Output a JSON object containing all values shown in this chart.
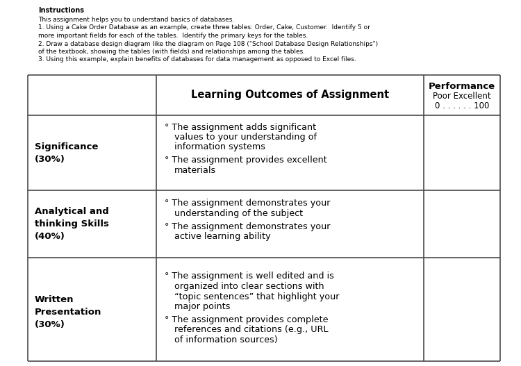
{
  "bg_color": "#ffffff",
  "title_text": "Instructions",
  "instructions_lines": [
    "This assignment helps you to understand basics of databases.",
    "1. Using a Cake Order Database as an example, create three tables: Order, Cake, Customer.  Identify 5 or",
    "more important fields for each of the tables.  Identify the primary keys for the tables.",
    "2. Draw a database design diagram like the diagram on Page 108 (\"School Database Design Relationships\")",
    "of the textbook, showing the tables (with fields) and relationships among the tables.",
    "3. Using this example, explain benefits of databases for data management as opposed to Excel files."
  ],
  "col2_header": "Learning Outcomes of Assignment",
  "col3_header_lines": [
    "Performance",
    "Poor Excellent",
    "0 . . . . . . 100"
  ],
  "rows": [
    {
      "col1": "Significance\n(30%)",
      "col2_bullets": [
        [
          "° The assignment adds significant",
          "values to your understanding of",
          "information systems"
        ],
        [
          "° The assignment provides excellent",
          "materials"
        ]
      ]
    },
    {
      "col1": "Analytical and\nthinking Skills\n(40%)",
      "col2_bullets": [
        [
          "° The assignment demonstrates your",
          "understanding of the subject"
        ],
        [
          "° The assignment demonstrates your",
          "active learning ability"
        ]
      ]
    },
    {
      "col1": "Written\nPresentation\n(30%)",
      "col2_bullets": [
        [
          "° The assignment is well edited and is",
          "organized into clear sections with",
          "“topic sentences” that highlight your",
          "major points"
        ],
        [
          "° The assignment provides complete",
          "references and citations (e.g., URL",
          "of information sources)"
        ]
      ]
    }
  ],
  "line_color": "#4a4a4a",
  "line_width": 1.2,
  "font_size_title": 7.0,
  "font_size_instr": 6.5,
  "font_size_col2_header": 10.5,
  "font_size_col3_header": 9.5,
  "font_size_col1_body": 9.5,
  "font_size_col2_body": 9.2
}
